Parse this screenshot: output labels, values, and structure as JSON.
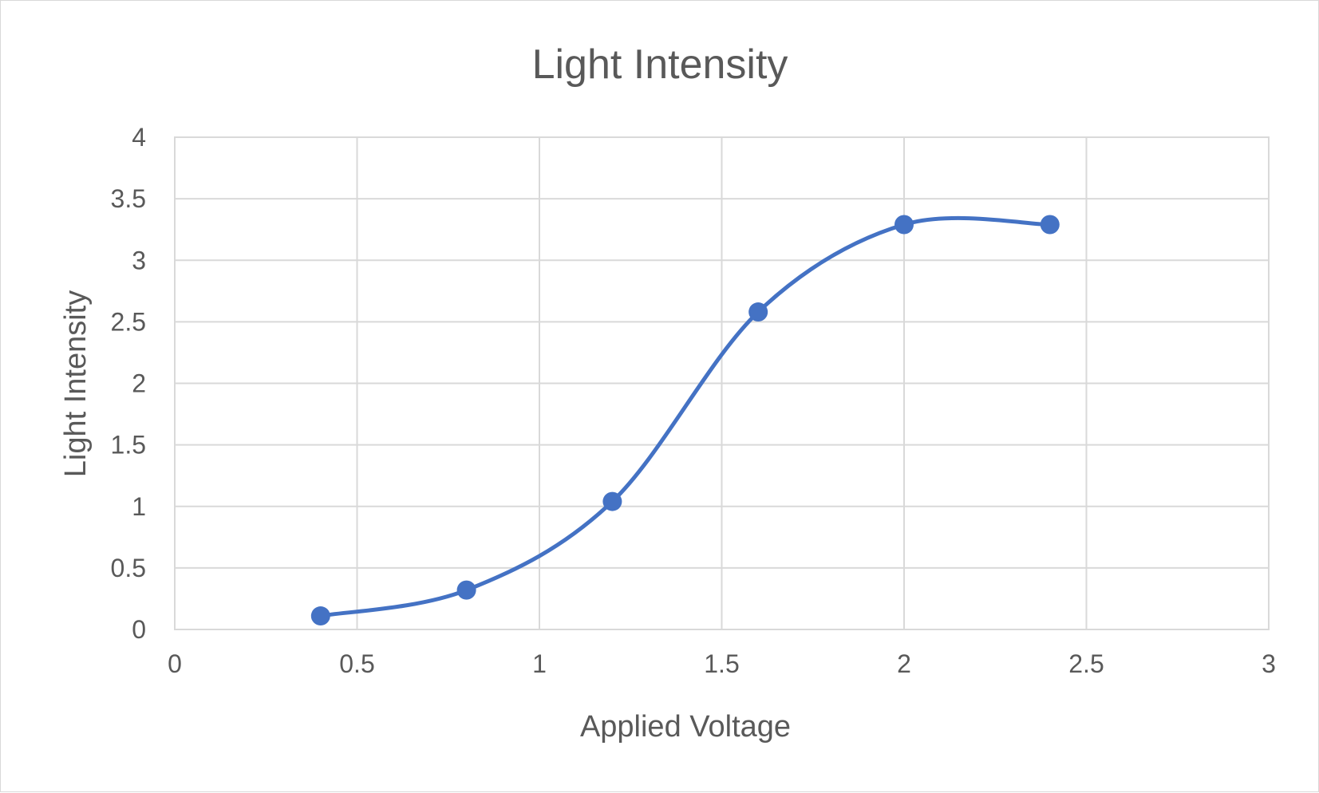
{
  "chart_data": {
    "type": "scatter",
    "title": "Light Intensity",
    "xlabel": "Applied Voltage",
    "ylabel": "Light Intensity",
    "xlim": [
      0,
      3
    ],
    "ylim": [
      0,
      4
    ],
    "x_ticks": [
      "0",
      "0.5",
      "1",
      "1.5",
      "2",
      "2.5",
      "3"
    ],
    "y_ticks": [
      "0",
      "0.5",
      "1",
      "1.5",
      "2",
      "2.5",
      "3",
      "3.5",
      "4"
    ],
    "grid": true,
    "smoothed_line": true,
    "markers": true,
    "legend": "none",
    "series": [
      {
        "color": "#4472c4",
        "x": [
          0.4,
          0.8,
          1.2,
          1.6,
          2.0,
          2.4
        ],
        "y": [
          0.11,
          0.32,
          1.04,
          2.58,
          3.29,
          3.29
        ]
      }
    ]
  }
}
